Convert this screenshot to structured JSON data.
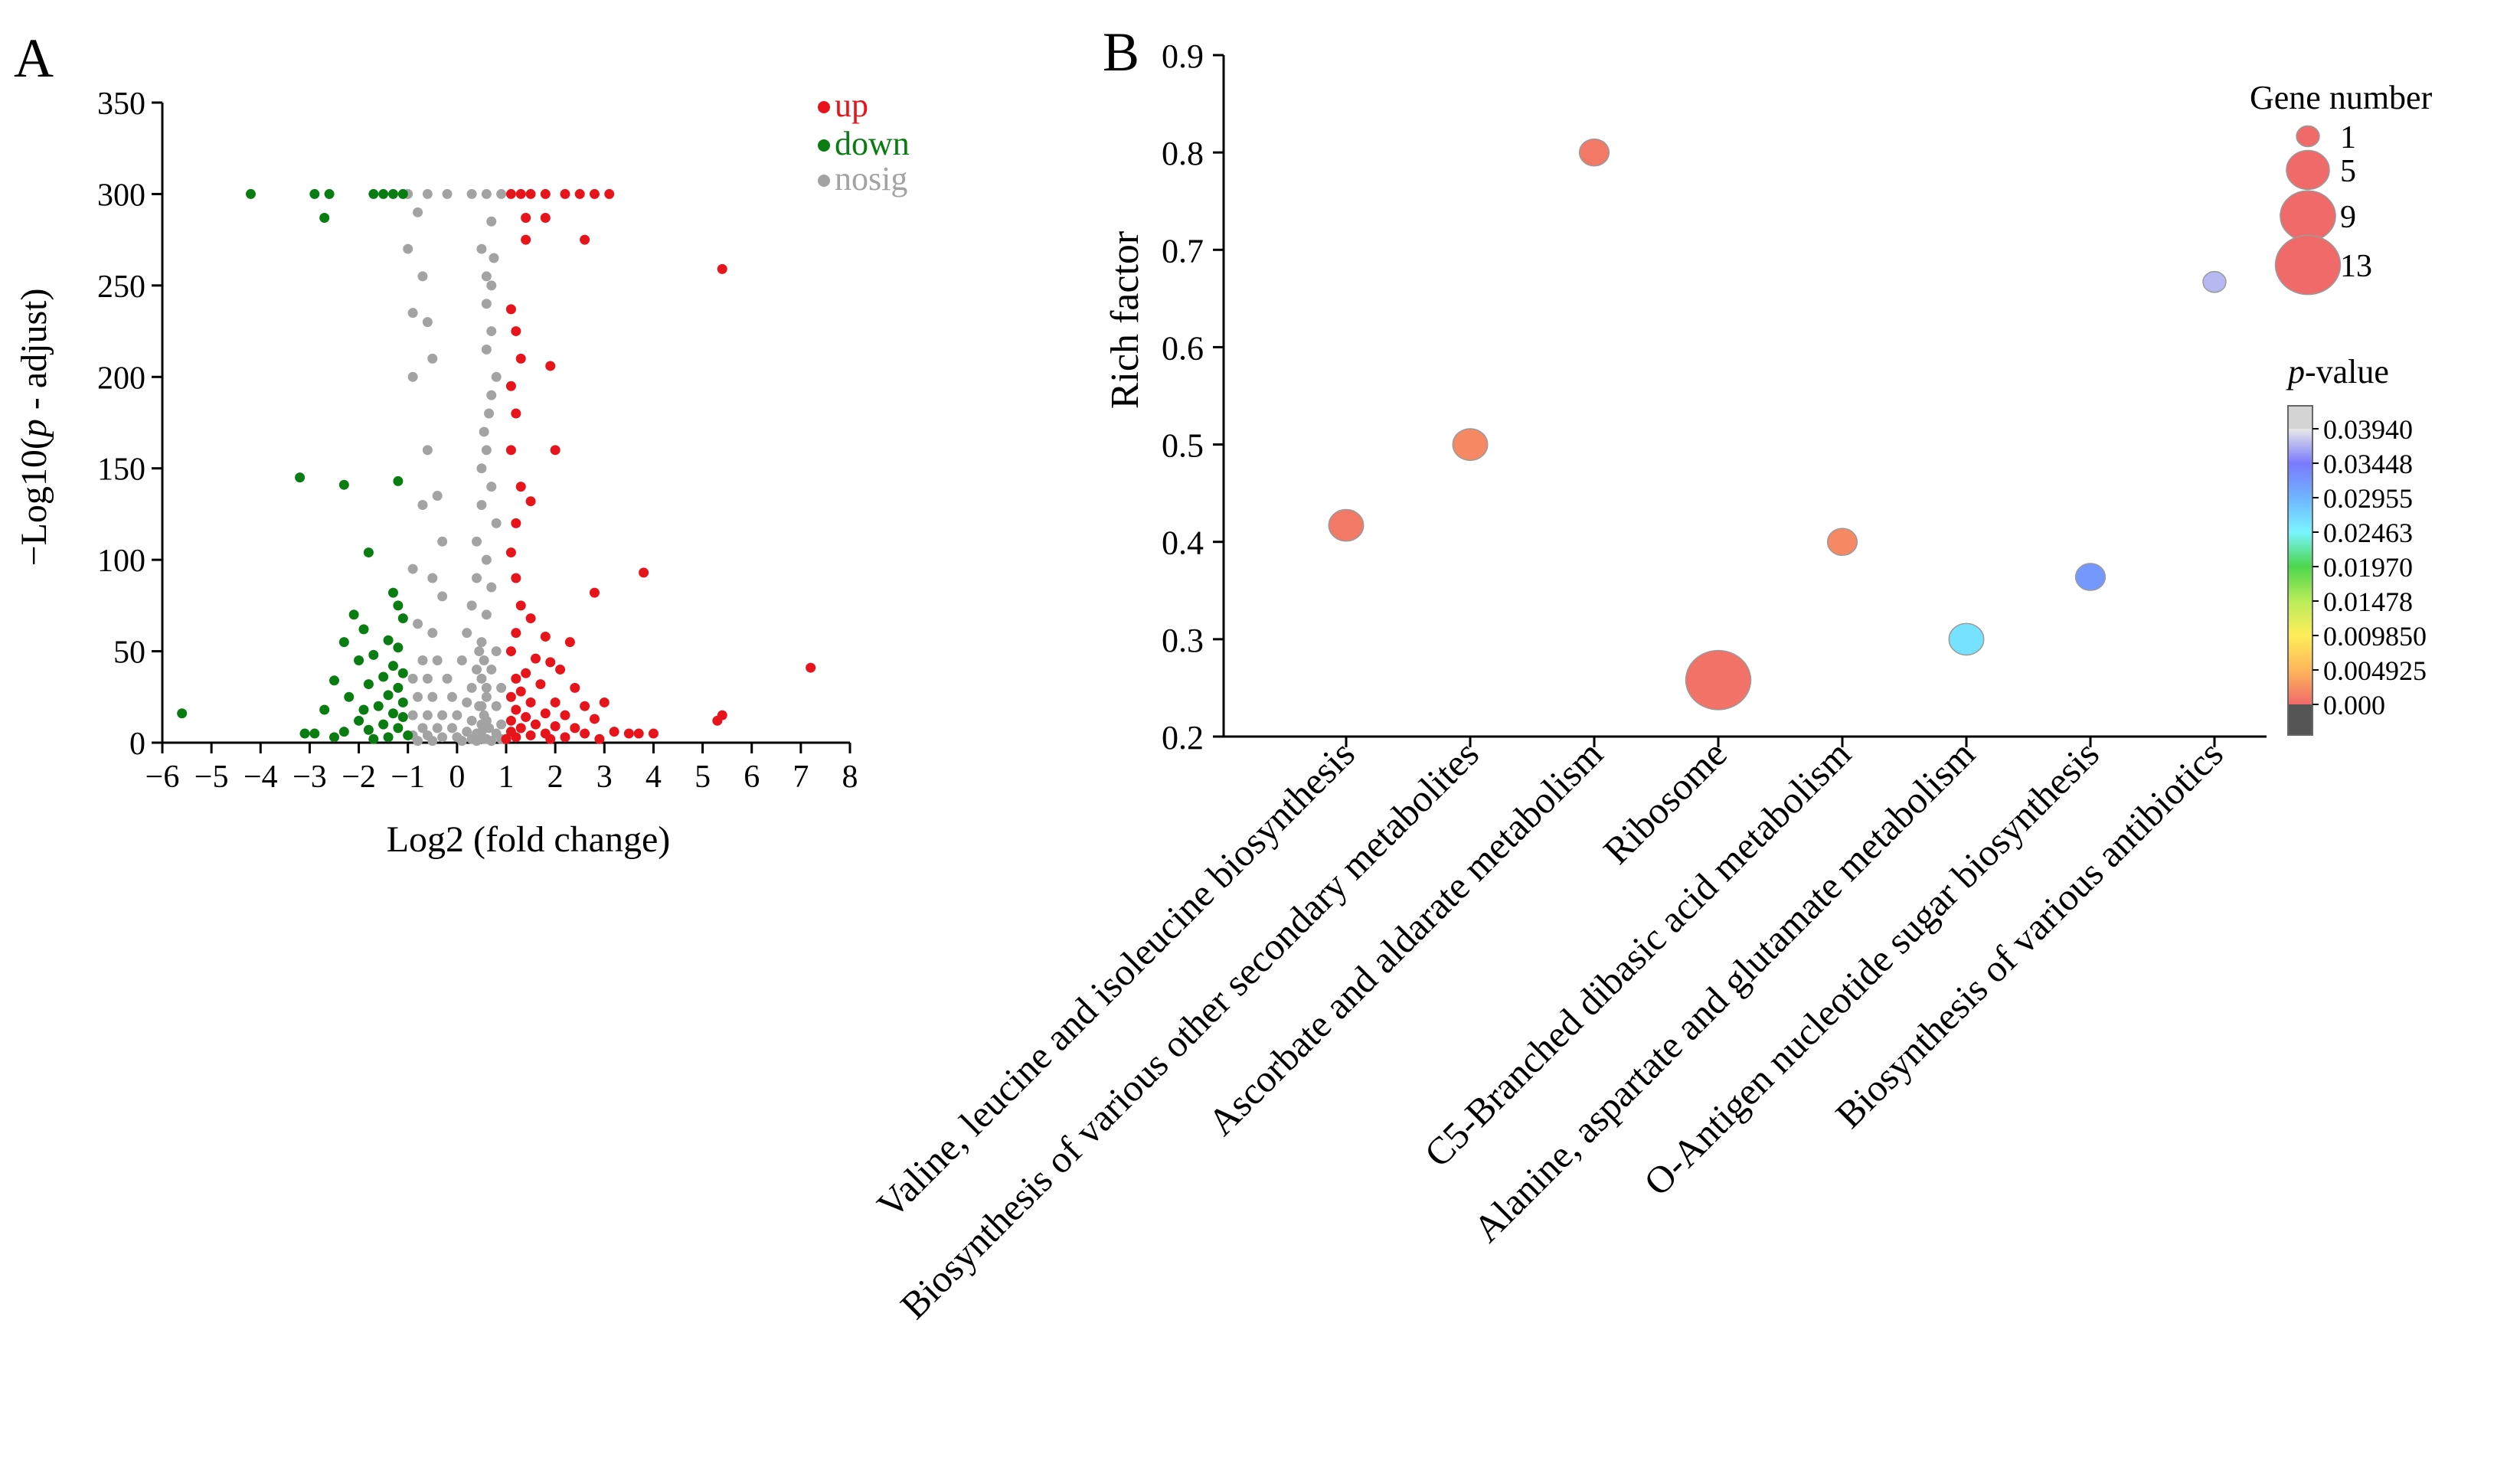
{
  "panels": {
    "a": {
      "label": "A"
    },
    "b": {
      "label": "B"
    }
  },
  "chart_data": [
    {
      "type": "scatter",
      "panel": "A",
      "xlabel": "Log2 (fold change)",
      "ylabel_prefix": "−Log10(",
      "ylabel_italic": "p",
      "ylabel_suffix": " - adjust)",
      "xlim": [
        -6,
        8
      ],
      "ylim": [
        0,
        350
      ],
      "xticks": [
        -6,
        -5,
        -4,
        -3,
        -2,
        -1,
        0,
        1,
        2,
        3,
        4,
        5,
        6,
        7,
        8
      ],
      "xticklabels": [
        "−6",
        "−5",
        "−4",
        "−3",
        "−2",
        "−1",
        "0",
        "1",
        "2",
        "3",
        "4",
        "5",
        "6",
        "7",
        "8"
      ],
      "yticks": [
        0,
        50,
        100,
        150,
        200,
        250,
        300,
        350
      ],
      "grid": false,
      "legend_position": "top-right",
      "series": [
        {
          "name": "up",
          "color": "#e8141b",
          "points": [
            [
              1.1,
              300
            ],
            [
              1.3,
              300
            ],
            [
              1.5,
              300
            ],
            [
              1.8,
              300
            ],
            [
              2.2,
              300
            ],
            [
              2.5,
              300
            ],
            [
              2.8,
              300
            ],
            [
              3.1,
              300
            ],
            [
              1.4,
              287
            ],
            [
              1.8,
              287
            ],
            [
              2.6,
              275
            ],
            [
              1.4,
              275
            ],
            [
              5.4,
              259
            ],
            [
              1.1,
              237
            ],
            [
              1.2,
              225
            ],
            [
              1.3,
              210
            ],
            [
              1.9,
              206
            ],
            [
              1.1,
              195
            ],
            [
              1.2,
              180
            ],
            [
              1.1,
              160
            ],
            [
              2.0,
              160
            ],
            [
              1.3,
              140
            ],
            [
              1.5,
              132
            ],
            [
              1.2,
              120
            ],
            [
              1.1,
              104
            ],
            [
              3.8,
              93
            ],
            [
              1.2,
              90
            ],
            [
              2.8,
              82
            ],
            [
              1.3,
              75
            ],
            [
              1.5,
              68
            ],
            [
              1.2,
              60
            ],
            [
              1.8,
              58
            ],
            [
              2.3,
              55
            ],
            [
              1.1,
              50
            ],
            [
              1.6,
              46
            ],
            [
              1.9,
              44
            ],
            [
              2.1,
              40
            ],
            [
              7.2,
              41
            ],
            [
              1.4,
              38
            ],
            [
              1.2,
              35
            ],
            [
              1.7,
              32
            ],
            [
              2.4,
              30
            ],
            [
              1.3,
              28
            ],
            [
              1.1,
              25
            ],
            [
              1.5,
              22
            ],
            [
              2.0,
              22
            ],
            [
              2.6,
              20
            ],
            [
              3.0,
              22
            ],
            [
              1.2,
              18
            ],
            [
              1.8,
              16
            ],
            [
              2.2,
              15
            ],
            [
              1.4,
              14
            ],
            [
              2.8,
              13
            ],
            [
              5.4,
              15
            ],
            [
              5.3,
              12
            ],
            [
              1.1,
              12
            ],
            [
              1.6,
              10
            ],
            [
              2.0,
              9
            ],
            [
              2.4,
              8
            ],
            [
              1.3,
              8
            ],
            [
              3.2,
              6
            ],
            [
              1.1,
              6
            ],
            [
              1.8,
              5
            ],
            [
              3.5,
              5
            ],
            [
              3.7,
              5
            ],
            [
              4.0,
              5
            ],
            [
              2.6,
              5
            ],
            [
              1.5,
              4
            ],
            [
              2.2,
              3
            ],
            [
              1.2,
              3
            ],
            [
              1.0,
              2
            ],
            [
              1.9,
              2
            ],
            [
              2.9,
              2
            ]
          ]
        },
        {
          "name": "down",
          "color": "#0a7d12",
          "points": [
            [
              -4.2,
              300
            ],
            [
              -2.9,
              300
            ],
            [
              -2.6,
              300
            ],
            [
              -1.7,
              300
            ],
            [
              -1.5,
              300
            ],
            [
              -1.3,
              300
            ],
            [
              -1.1,
              300
            ],
            [
              -2.7,
              287
            ],
            [
              -3.2,
              145
            ],
            [
              -2.3,
              141
            ],
            [
              -1.2,
              143
            ],
            [
              -1.8,
              104
            ],
            [
              -1.3,
              82
            ],
            [
              -1.2,
              75
            ],
            [
              -2.1,
              70
            ],
            [
              -1.1,
              68
            ],
            [
              -1.9,
              62
            ],
            [
              -1.4,
              56
            ],
            [
              -2.3,
              55
            ],
            [
              -1.2,
              52
            ],
            [
              -1.7,
              48
            ],
            [
              -2.0,
              45
            ],
            [
              -1.3,
              42
            ],
            [
              -1.1,
              38
            ],
            [
              -1.5,
              36
            ],
            [
              -2.5,
              34
            ],
            [
              -1.8,
              32
            ],
            [
              -1.2,
              30
            ],
            [
              -1.4,
              26
            ],
            [
              -2.2,
              25
            ],
            [
              -1.1,
              22
            ],
            [
              -1.6,
              20
            ],
            [
              -1.9,
              18
            ],
            [
              -2.7,
              18
            ],
            [
              -1.3,
              16
            ],
            [
              -5.6,
              16
            ],
            [
              -1.1,
              14
            ],
            [
              -2.0,
              12
            ],
            [
              -1.5,
              10
            ],
            [
              -1.2,
              8
            ],
            [
              -1.8,
              7
            ],
            [
              -2.3,
              6
            ],
            [
              -2.9,
              5
            ],
            [
              -3.1,
              5
            ],
            [
              -1.0,
              4
            ],
            [
              -1.4,
              3
            ],
            [
              -2.5,
              3
            ],
            [
              -1.7,
              2
            ]
          ]
        },
        {
          "name": "nosig",
          "color": "#a3a3a3",
          "points": [
            [
              -1.0,
              300
            ],
            [
              -0.6,
              300
            ],
            [
              -0.2,
              300
            ],
            [
              0.3,
              300
            ],
            [
              0.6,
              300
            ],
            [
              0.9,
              300
            ],
            [
              -0.8,
              290
            ],
            [
              0.7,
              285
            ],
            [
              -1.0,
              270
            ],
            [
              0.5,
              270
            ],
            [
              -0.7,
              255
            ],
            [
              0.6,
              255
            ],
            [
              -0.9,
              235
            ],
            [
              -0.6,
              230
            ],
            [
              0.7,
              225
            ],
            [
              -0.5,
              210
            ],
            [
              0.6,
              215
            ],
            [
              0.8,
              200
            ],
            [
              -0.9,
              200
            ],
            [
              -0.6,
              160
            ],
            [
              0.5,
              150
            ],
            [
              0.7,
              140
            ],
            [
              -0.4,
              135
            ],
            [
              -0.7,
              130
            ],
            [
              0.5,
              130
            ],
            [
              0.8,
              120
            ],
            [
              -0.3,
              110
            ],
            [
              0.4,
              110
            ],
            [
              0.6,
              100
            ],
            [
              -0.9,
              95
            ],
            [
              -0.5,
              90
            ],
            [
              0.4,
              90
            ],
            [
              0.7,
              85
            ],
            [
              -0.3,
              80
            ],
            [
              0.3,
              75
            ],
            [
              0.6,
              70
            ],
            [
              -0.8,
              65
            ],
            [
              -0.5,
              60
            ],
            [
              0.2,
              60
            ],
            [
              0.5,
              55
            ],
            [
              0.8,
              50
            ],
            [
              -0.7,
              45
            ],
            [
              -0.4,
              45
            ],
            [
              0.1,
              45
            ],
            [
              0.4,
              40
            ],
            [
              0.7,
              40
            ],
            [
              -0.9,
              35
            ],
            [
              -0.6,
              35
            ],
            [
              -0.2,
              35
            ],
            [
              0.3,
              30
            ],
            [
              0.6,
              30
            ],
            [
              0.9,
              30
            ],
            [
              -0.8,
              25
            ],
            [
              -0.5,
              25
            ],
            [
              -0.1,
              25
            ],
            [
              0.2,
              22
            ],
            [
              0.5,
              20
            ],
            [
              0.8,
              20
            ],
            [
              -0.9,
              15
            ],
            [
              -0.6,
              15
            ],
            [
              -0.3,
              15
            ],
            [
              0.0,
              15
            ],
            [
              0.3,
              12
            ],
            [
              0.6,
              12
            ],
            [
              0.9,
              10
            ],
            [
              -0.7,
              8
            ],
            [
              -0.4,
              8
            ],
            [
              -0.1,
              8
            ],
            [
              0.2,
              6
            ],
            [
              0.5,
              6
            ],
            [
              0.8,
              5
            ],
            [
              -0.9,
              4
            ],
            [
              -0.6,
              4
            ],
            [
              -0.3,
              3
            ],
            [
              0.0,
              3
            ],
            [
              0.3,
              2
            ],
            [
              0.6,
              2
            ],
            [
              0.9,
              2
            ],
            [
              -0.8,
              1
            ],
            [
              -0.5,
              1
            ],
            [
              0.1,
              1
            ],
            [
              0.4,
              1
            ],
            [
              0.7,
              1
            ],
            [
              0.45,
              50
            ],
            [
              0.55,
              45
            ],
            [
              0.5,
              35
            ],
            [
              0.6,
              25
            ],
            [
              0.45,
              20
            ],
            [
              0.55,
              15
            ],
            [
              0.5,
              10
            ],
            [
              0.65,
              8
            ],
            [
              0.4,
              5
            ],
            [
              0.5,
              3
            ],
            [
              0.55,
              2
            ],
            [
              0.6,
              160
            ],
            [
              0.65,
              180
            ],
            [
              0.55,
              170
            ],
            [
              0.7,
              190
            ],
            [
              0.6,
              240
            ],
            [
              0.7,
              250
            ],
            [
              0.75,
              265
            ]
          ]
        }
      ]
    },
    {
      "type": "scatter",
      "panel": "B",
      "ylabel": "Rich factor",
      "ylim": [
        0.2,
        0.9
      ],
      "yticks": [
        0.2,
        0.3,
        0.4,
        0.5,
        0.6,
        0.7,
        0.8,
        0.9
      ],
      "categories": [
        "Valine, leucine and isoleucine biosynthesis",
        "Biosynthesis of various other secondary metabolites",
        "Ascorbate and aldarate metabolism",
        "Ribosome",
        "C5-Branched dibasic acid metabolism",
        "Alanine, aspartate and glutamate metabolism",
        "O-Antigen nucleotide sugar biosynthesis",
        "Biosynthesis of various antibiotics"
      ],
      "points": [
        {
          "category": "Valine, leucine and isoleucine biosynthesis",
          "rich_factor": 0.417,
          "gene_number": 3,
          "p_value": 0.001
        },
        {
          "category": "Biosynthesis of various other secondary metabolites",
          "rich_factor": 0.5,
          "gene_number": 3,
          "p_value": 0.002
        },
        {
          "category": "Ascorbate and aldarate metabolism",
          "rich_factor": 0.8,
          "gene_number": 2,
          "p_value": 0.001
        },
        {
          "category": "Ribosome",
          "rich_factor": 0.258,
          "gene_number": 13,
          "p_value": 0.0005
        },
        {
          "category": "C5-Branched dibasic acid metabolism",
          "rich_factor": 0.4,
          "gene_number": 2,
          "p_value": 0.002
        },
        {
          "category": "Alanine, aspartate and glutamate metabolism",
          "rich_factor": 0.3,
          "gene_number": 3,
          "p_value": 0.026
        },
        {
          "category": "O-Antigen nucleotide sugar biosynthesis",
          "rich_factor": 0.364,
          "gene_number": 2,
          "p_value": 0.032
        },
        {
          "category": "Biosynthesis of various antibiotics",
          "rich_factor": 0.667,
          "gene_number": 1,
          "p_value": 0.0372
        }
      ],
      "size_legend": {
        "title": "Gene number",
        "values": [
          1,
          5,
          9,
          13
        ]
      },
      "color_legend": {
        "title_italic": "p",
        "title_suffix": "-value",
        "labels": [
          "0.03940",
          "0.03448",
          "0.02955",
          "0.02463",
          "0.01970",
          "0.01478",
          "0.009850",
          "0.004925",
          "0.000"
        ],
        "stops": [
          {
            "p": 0.0394,
            "color": "#e8e8e8"
          },
          {
            "p": 0.0345,
            "color": "#7a7aff"
          },
          {
            "p": 0.0296,
            "color": "#6fb4ff"
          },
          {
            "p": 0.0246,
            "color": "#79f4ff"
          },
          {
            "p": 0.0197,
            "color": "#4cd64c"
          },
          {
            "p": 0.0148,
            "color": "#b9ec5a"
          },
          {
            "p": 0.00985,
            "color": "#ffed5a"
          },
          {
            "p": 0.004925,
            "color": "#ffb65a"
          },
          {
            "p": 0.0,
            "color": "#f06a6a"
          }
        ],
        "top_color": "#d4d4d4",
        "bottom_color": "#555555"
      }
    }
  ]
}
